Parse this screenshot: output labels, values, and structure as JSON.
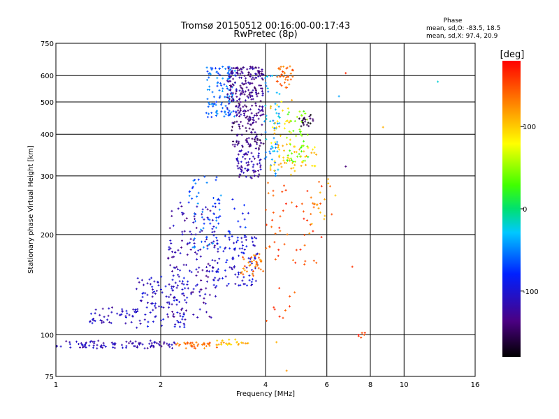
{
  "chart_data": {
    "type": "scatter",
    "title": "Tromsø 20150512 00:16:00-00:17:43",
    "subtitle": "RwPretec (8p)",
    "xlabel": "Frequency [MHz]",
    "ylabel": "Stationary phase Virtual Height [km]",
    "x_scale": "log2",
    "y_scale": "log",
    "xlim": [
      1,
      16
    ],
    "ylim": [
      75,
      750
    ],
    "x_ticks": [
      1,
      2,
      4,
      6,
      8,
      10,
      16
    ],
    "y_ticks": [
      75,
      100,
      200,
      300,
      400,
      500,
      600,
      750
    ],
    "grid": true,
    "phase_stats": {
      "heading": "Phase",
      "line_o": "mean, sd,O: -83.5, 18.5",
      "line_x": "mean, sd,X:  97.4, 20.9"
    },
    "colorbar": {
      "label": "[deg]",
      "range": [
        -180,
        180
      ],
      "ticks": [
        100,
        0,
        -100
      ]
    },
    "clusters": [
      {
        "x": [
          1.0,
          2.2
        ],
        "y": [
          91,
          96
        ],
        "n": 95,
        "phase": -115
      },
      {
        "x": [
          1.25,
          1.7
        ],
        "y": [
          108,
          122
        ],
        "n": 45,
        "phase": -110
      },
      {
        "x": [
          1.7,
          2.4
        ],
        "y": [
          105,
          150
        ],
        "n": 110,
        "phase": -105
      },
      {
        "x": [
          2.1,
          2.9
        ],
        "y": [
          112,
          250
        ],
        "n": 150,
        "phase": -118
      },
      {
        "x": [
          2.4,
          3.0
        ],
        "y": [
          180,
          300
        ],
        "n": 50,
        "phase": -60
      },
      {
        "x": [
          2.2,
          2.9
        ],
        "y": [
          91,
          95
        ],
        "n": 40,
        "phase": 135
      },
      {
        "x": [
          2.9,
          3.6
        ],
        "y": [
          93,
          97
        ],
        "n": 25,
        "phase": 105
      },
      {
        "x": [
          2.8,
          3.8
        ],
        "y": [
          140,
          200
        ],
        "n": 110,
        "phase": -100
      },
      {
        "x": [
          3.4,
          3.95
        ],
        "y": [
          150,
          175
        ],
        "n": 35,
        "phase": 135
      },
      {
        "x": [
          2.7,
          3.3
        ],
        "y": [
          450,
          640
        ],
        "n": 110,
        "phase": -60
      },
      {
        "x": [
          3.1,
          3.95
        ],
        "y": [
          440,
          640
        ],
        "n": 220,
        "phase": -130
      },
      {
        "x": [
          3.2,
          3.95
        ],
        "y": [
          360,
          440
        ],
        "n": 70,
        "phase": -140
      },
      {
        "x": [
          3.3,
          3.9
        ],
        "y": [
          295,
          360
        ],
        "n": 70,
        "phase": -120
      },
      {
        "x": [
          3.95,
          4.4
        ],
        "y": [
          300,
          600
        ],
        "n": 55,
        "phase": -40
      },
      {
        "x": [
          4.3,
          4.8
        ],
        "y": [
          550,
          640
        ],
        "n": 35,
        "phase": 140
      },
      {
        "x": [
          4.1,
          4.9
        ],
        "y": [
          300,
          520
        ],
        "n": 60,
        "phase": 100
      },
      {
        "x": [
          4.6,
          5.3
        ],
        "y": [
          330,
          470
        ],
        "n": 45,
        "phase": 40
      },
      {
        "x": [
          5.0,
          5.5
        ],
        "y": [
          420,
          460
        ],
        "n": 20,
        "phase": -160
      },
      {
        "x": [
          4.9,
          5.6
        ],
        "y": [
          320,
          370
        ],
        "n": 20,
        "phase": 100
      },
      {
        "x": [
          4.0,
          5.8
        ],
        "y": [
          160,
          290
        ],
        "n": 55,
        "phase": 150
      },
      {
        "x": [
          5.3,
          6.5
        ],
        "y": [
          200,
          300
        ],
        "n": 15,
        "phase": 120
      },
      {
        "x": [
          7.4,
          7.8
        ],
        "y": [
          98,
          102
        ],
        "n": 6,
        "phase": 165
      },
      {
        "x": [
          4.0,
          5.0
        ],
        "y": [
          110,
          140
        ],
        "n": 10,
        "phase": 150
      },
      {
        "x": [
          2.8,
          3.6
        ],
        "y": [
          200,
          260
        ],
        "n": 20,
        "phase": -80
      }
    ],
    "sparse_points": [
      [
        6.8,
        610,
        165
      ],
      [
        6.5,
        520,
        -40
      ],
      [
        6.8,
        320,
        -140
      ],
      [
        8.7,
        420,
        110
      ],
      [
        12.5,
        575,
        -20
      ],
      [
        7.1,
        160,
        160
      ],
      [
        4.6,
        78,
        120
      ],
      [
        6.2,
        230,
        150
      ],
      [
        4.3,
        95,
        110
      ]
    ]
  }
}
